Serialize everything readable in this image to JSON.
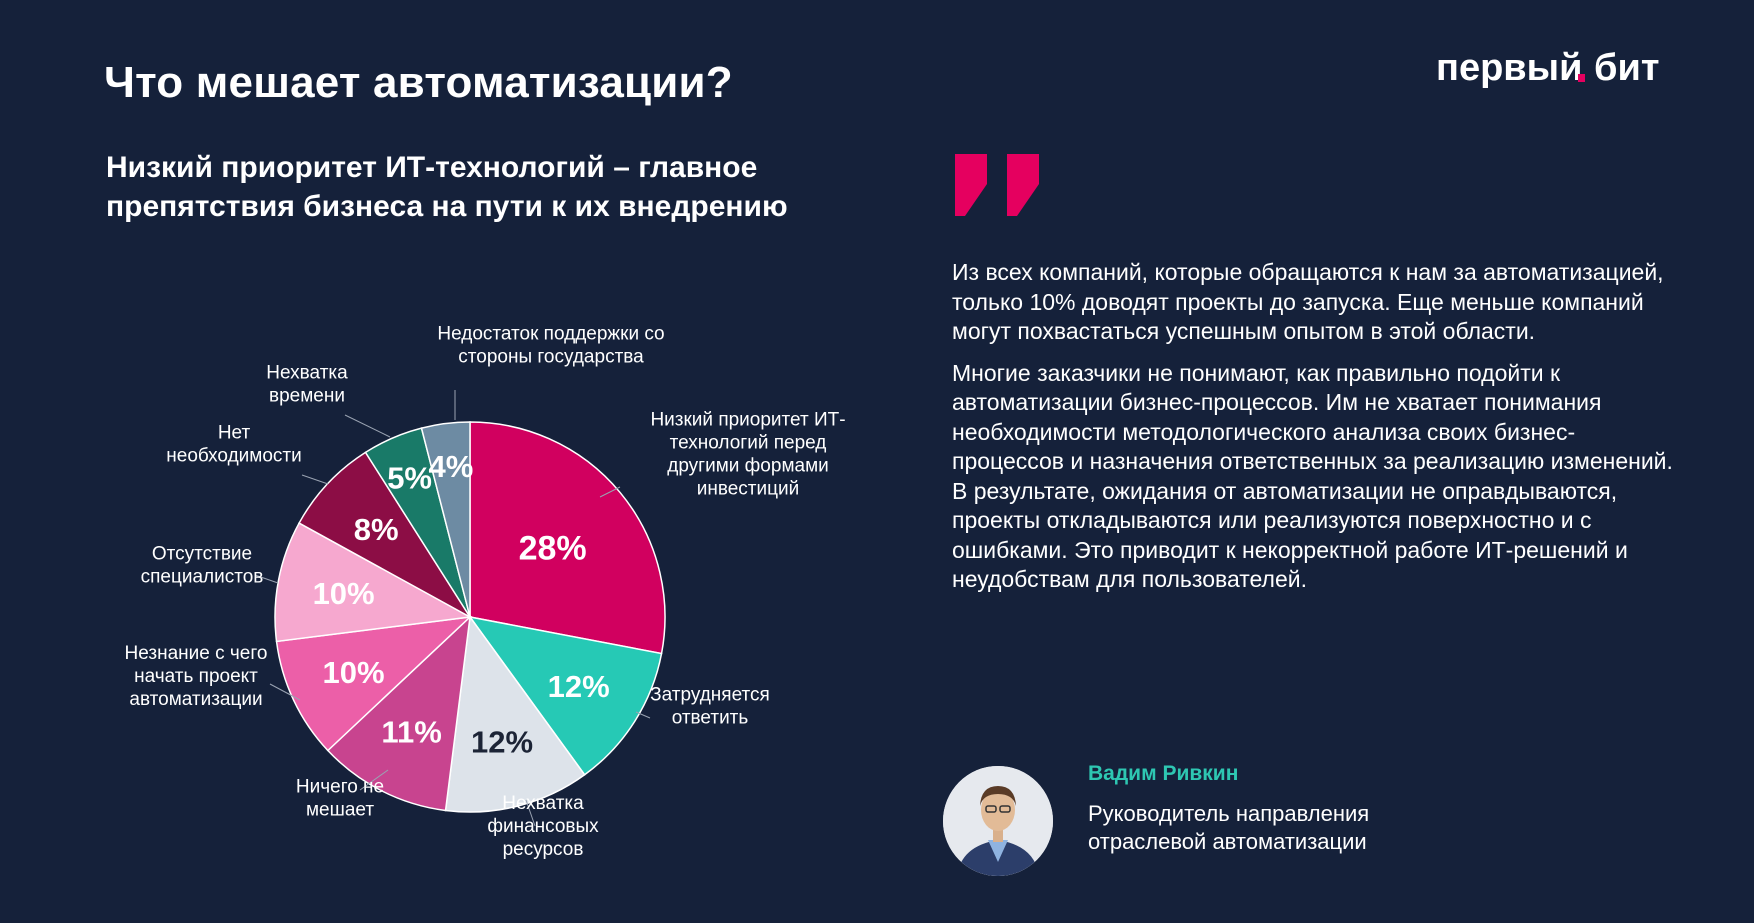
{
  "page": {
    "title": "Что мешает автоматизации?",
    "subtitle": "Низкий приоритет ИТ-технологий – главное препятствия бизнеса на пути к их внедрению",
    "logo_text": "первый бит",
    "logo_dot_color": "#e5005f"
  },
  "chart_data": {
    "type": "pie",
    "start_angle_deg": 0,
    "direction": "clockwise",
    "categories": [
      "Низкий приоритет ИТ-технологий перед другими формами инвестиций",
      "Затрудняется ответить",
      "Нехватка финансовых ресурсов",
      "Ничего не мешает",
      "Незнание с чего начать проект автоматизации",
      "Отсутствие специалистов",
      "Нет необходимости",
      "Нехватка времени",
      "Недостаток поддержки со стороны государства"
    ],
    "label_lines": [
      [
        "Низкий приоритет ИТ-",
        "технологий перед",
        "другими формами",
        "инвестиций"
      ],
      [
        "Затрудняется",
        "ответить"
      ],
      [
        "Нехватка",
        "финансовых",
        "ресурсов"
      ],
      [
        "Ничего не",
        "мешает"
      ],
      [
        "Незнание с чего",
        "начать проект",
        "автоматизации"
      ],
      [
        "Отсутствие",
        "специалистов"
      ],
      [
        "Нет",
        "необходимости"
      ],
      [
        "Нехватка",
        "времени"
      ],
      [
        "Недостаток поддержки со",
        "стороны государства"
      ]
    ],
    "values": [
      28,
      12,
      12,
      11,
      10,
      10,
      8,
      5,
      4
    ],
    "value_labels": [
      "28%",
      "12%",
      "12%",
      "11%",
      "10%",
      "10%",
      "8%",
      "5%",
      "4%"
    ],
    "colors": [
      "#d1005f",
      "#26c9b5",
      "#dde3ea",
      "#c8448f",
      "#ec5fa8",
      "#f6a8cf",
      "#8c0d45",
      "#197a68",
      "#6d8ba3"
    ],
    "value_label_colors": [
      "#ffffff",
      "#ffffff",
      "#1c2436",
      "#ffffff",
      "#ffffff",
      "#ffffff",
      "#ffffff",
      "#ffffff",
      "#ffffff"
    ]
  },
  "quote": {
    "paragraphs": [
      "Из всех компаний, которые обращаются к нам за автоматизацией, только 10% доводят проекты до запуска. Еще меньше компаний могут похвастаться успешным опытом в этой области.",
      "Многие заказчики не понимают, как правильно подойти к автоматизации бизнес-процессов. Им не хватает понимания необходимости методологического анализа своих бизнес-процессов и назначения ответственных за реализацию изменений. В результате, ожидания от автоматизации не оправдываются, проекты откладываются или реализуются поверхностно и с ошибками. Это приводит к некорректной работе ИТ-решений и неудобствам для пользователей."
    ],
    "mark_color": "#e5005f"
  },
  "author": {
    "name": "Вадим Ривкин",
    "role": "Руководитель направления отраслевой автоматизации",
    "name_color": "#2ec7b2"
  }
}
